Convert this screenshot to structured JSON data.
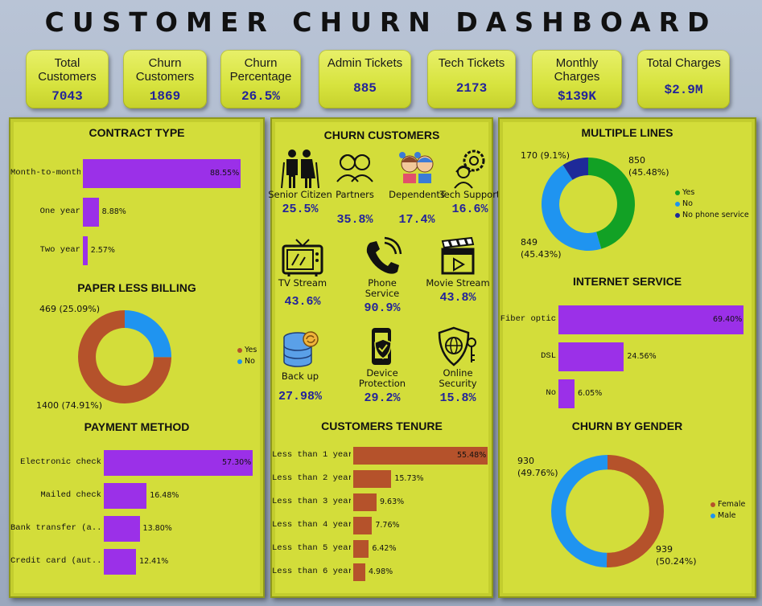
{
  "title": "CUSTOMER CHURN DASHBOARD",
  "kpis": [
    {
      "label": "Total Customers",
      "value": "7043"
    },
    {
      "label": "Churn Customers",
      "value": "1869"
    },
    {
      "label": "Churn Percentage",
      "value": "26.5%"
    },
    {
      "label": "Admin Tickets",
      "value": "885"
    },
    {
      "label": "Tech Tickets",
      "value": "2173"
    },
    {
      "label": "Monthly Charges",
      "value": "$139K"
    },
    {
      "label": "Total Charges",
      "value": "$2.9M"
    }
  ],
  "churn_customers": {
    "title": "CHURN CUSTOMERS",
    "items": [
      {
        "name": "Senior Citizen",
        "pct": "25.5%",
        "icon": "senior-citizen-icon"
      },
      {
        "name": "Partners",
        "pct": "35.8%",
        "icon": "partners-icon"
      },
      {
        "name": "Dependents",
        "pct": "17.4%",
        "icon": "dependents-icon"
      },
      {
        "name": "Tech Support",
        "pct": "16.6%",
        "icon": "tech-support-icon"
      },
      {
        "name": "TV Stream",
        "pct": "43.6%",
        "icon": "tv-icon"
      },
      {
        "name": "Phone Service",
        "pct": "90.9%",
        "icon": "phone-icon"
      },
      {
        "name": "Movie Stream",
        "pct": "43.8%",
        "icon": "movie-clapper-icon"
      },
      {
        "name": "Back up",
        "pct": "27.98%",
        "icon": "database-backup-icon"
      },
      {
        "name": "Device Protection",
        "pct": "29.2%",
        "icon": "device-protection-icon"
      },
      {
        "name": "Online Security",
        "pct": "15.8%",
        "icon": "online-security-icon"
      }
    ]
  },
  "colors": {
    "purple": "#9b30e8",
    "brown": "#b5522b",
    "blue": "#1f94f0",
    "green": "#12a125",
    "navy": "#1e2a99",
    "kpi_value": "#23239a",
    "panel": "#d3dd3a"
  },
  "chart_data": [
    {
      "id": "contract",
      "type": "bar",
      "orientation": "horizontal",
      "title": "CONTRACT TYPE",
      "categories": [
        "Month-to-month",
        "One year",
        "Two year"
      ],
      "values": [
        88.55,
        8.88,
        2.57
      ],
      "labels": [
        "88.55%",
        "8.88%",
        "2.57%"
      ],
      "xlim": [
        0,
        100
      ]
    },
    {
      "id": "paperless",
      "type": "pie",
      "donut": true,
      "title": "PAPER LESS BILLING",
      "categories": [
        "Yes",
        "No"
      ],
      "values": [
        1400,
        469
      ],
      "labels": [
        "1400 (74.91%)",
        "469 (25.09%)"
      ]
    },
    {
      "id": "payment",
      "type": "bar",
      "orientation": "horizontal",
      "title": "PAYMENT METHOD",
      "categories": [
        "Electronic check",
        "Mailed check",
        "Bank transfer (a...",
        "Credit card (aut..."
      ],
      "values": [
        57.3,
        16.48,
        13.8,
        12.41
      ],
      "labels": [
        "57.30%",
        "16.48%",
        "13.80%",
        "12.41%"
      ],
      "xlim": [
        0,
        100
      ]
    },
    {
      "id": "tenure",
      "type": "bar",
      "orientation": "horizontal",
      "title": "CUSTOMERS TENURE",
      "categories": [
        "Less than 1 year",
        "Less than 2 year",
        "Less than 3 year",
        "Less than 4 year",
        "Less than 5 year",
        "Less than 6 year"
      ],
      "values": [
        55.48,
        15.73,
        9.63,
        7.76,
        6.42,
        4.98
      ],
      "labels": [
        "55.48%",
        "15.73%",
        "9.63%",
        "7.76%",
        "6.42%",
        "4.98%"
      ],
      "xlim": [
        0,
        100
      ]
    },
    {
      "id": "multilines",
      "type": "pie",
      "donut": true,
      "title": "MULTIPLE LINES",
      "categories": [
        "Yes",
        "No",
        "No phone service"
      ],
      "values": [
        850,
        849,
        170
      ],
      "labels": [
        "850 (45.48%)",
        "849 (45.43%)",
        "170 (9.1%)"
      ]
    },
    {
      "id": "internet",
      "type": "bar",
      "orientation": "horizontal",
      "title": "INTERNET SERVICE",
      "categories": [
        "Fiber optic",
        "DSL",
        "No"
      ],
      "values": [
        69.4,
        24.56,
        6.05
      ],
      "labels": [
        "69.40%",
        "24.56%",
        "6.05%"
      ],
      "xlim": [
        0,
        100
      ]
    },
    {
      "id": "gender",
      "type": "pie",
      "donut": true,
      "title": "CHURN BY GENDER",
      "categories": [
        "Female",
        "Male"
      ],
      "values": [
        939,
        930
      ],
      "labels": [
        "939 (50.24%)",
        "930 (49.76%)"
      ]
    }
  ]
}
